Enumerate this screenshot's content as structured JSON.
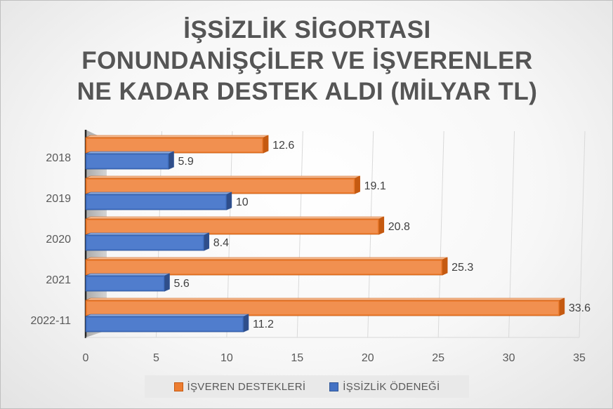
{
  "chart_data": {
    "type": "bar",
    "orientation": "horizontal",
    "title": "İŞSİZLİK SİGORTASI FONUNDANİŞÇİLER VE İŞVERENLER NE KADAR DESTEK ALDI (MİLYAR TL)",
    "title_lines": [
      "İŞSİZLİK SİGORTASI",
      "FONUNDANİŞÇİLER VE İŞVERENLER",
      "NE KADAR DESTEK ALDI (MİLYAR TL)"
    ],
    "categories": [
      "2018",
      "2019",
      "2020",
      "2021",
      "2022-11"
    ],
    "series": [
      {
        "name": "İŞVEREN DESTEKLERİ",
        "values": [
          12.6,
          19.1,
          20.8,
          25.3,
          33.6
        ],
        "color": "#ED7D31"
      },
      {
        "name": "İŞSİZLİK ÖDENEĞİ",
        "values": [
          5.9,
          10,
          8.4,
          5.6,
          11.2
        ],
        "color": "#4472C4"
      }
    ],
    "data_labels": [
      [
        "12.6",
        "19.1",
        "20.8",
        "25.3",
        "33.6"
      ],
      [
        "5.9",
        "10",
        "8.4",
        "5.6",
        "11.2"
      ]
    ],
    "xlim": [
      0,
      35
    ],
    "xticks": [
      "0",
      "5",
      "10",
      "15",
      "20",
      "25",
      "30",
      "35"
    ],
    "grid": true,
    "legend_position": "bottom"
  }
}
